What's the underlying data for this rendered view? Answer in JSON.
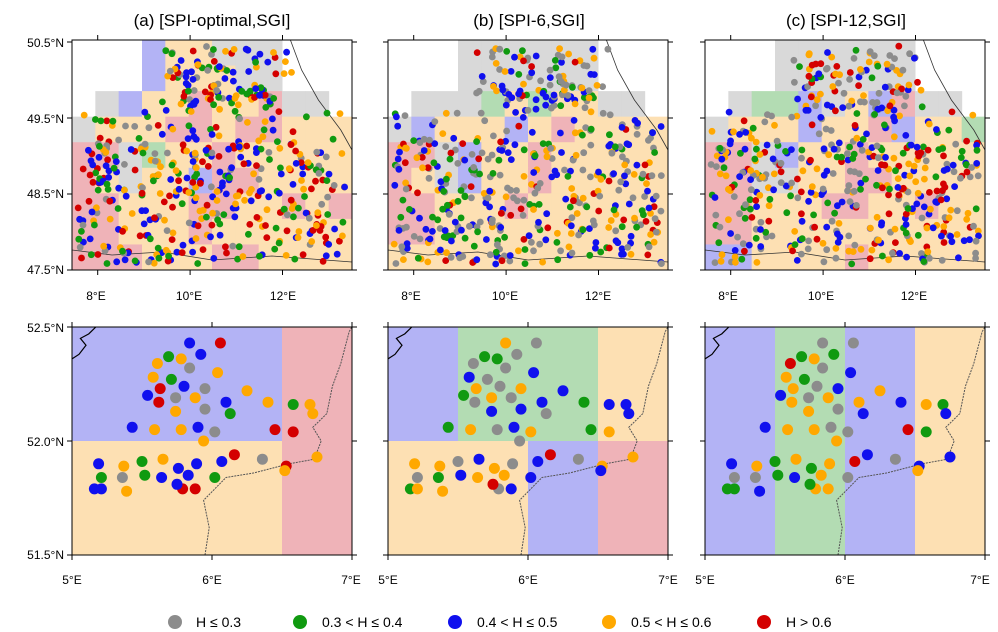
{
  "panel_titles": [
    "(a) [SPI-optimal,SGI]",
    "(b) [SPI-6,SGI]",
    "(c) [SPI-12,SGI]"
  ],
  "top_row": {
    "y_ticks": [
      "50.5°N",
      "49.5°N",
      "48.5°N",
      "47.5°N"
    ],
    "x_ticks": [
      "8°E",
      "10°E",
      "12°E"
    ]
  },
  "bottom_row": {
    "y_ticks": [
      "52.5°N",
      "52.0°N",
      "51.5°N"
    ],
    "x_ticks": [
      "5°E",
      "6°E",
      "7°E"
    ]
  },
  "legend": [
    {
      "label": "H ≤ 0.3",
      "color": "#8c8c8c"
    },
    {
      "label": "0.3 < H ≤ 0.4",
      "color": "#109a10"
    },
    {
      "label": "0.4 < H ≤ 0.5",
      "color": "#1010ee"
    },
    {
      "label": "0.5 < H ≤ 0.6",
      "color": "#ffa800"
    },
    {
      "label": "H > 0.6",
      "color": "#d40000"
    }
  ],
  "chart_data": {
    "type": "map",
    "category_colors": {
      "le03": "#8c8c8c",
      "b03_04": "#109a10",
      "b04_05": "#1010ee",
      "b05_06": "#ffa800",
      "gt06": "#d40000"
    },
    "grid_fill_colors": {
      "le03": "#d9d9d9",
      "b03_04": "#b3dcb3",
      "b04_05": "#b3b3f5",
      "b05_06": "#fde0b3",
      "gt06": "#efb3b8"
    },
    "bottom_grid": {
      "cells_lon_edges": [
        5.0,
        5.5,
        6.0,
        6.5,
        7.0
      ],
      "cells_lat_edges": [
        51.5,
        52.0,
        52.5
      ],
      "panels": [
        {
          "upper": [
            "b04_05",
            "b04_05",
            "b04_05",
            "gt06"
          ],
          "lower": [
            "b05_06",
            "b05_06",
            "b05_06",
            "gt06"
          ]
        },
        {
          "upper": [
            "b04_05",
            "b03_04",
            "b03_04",
            "b05_06"
          ],
          "lower": [
            "b05_06",
            "b05_06",
            "b04_05",
            "gt06"
          ]
        },
        {
          "upper": [
            "b04_05",
            "b03_04",
            "b04_05",
            "b05_06"
          ],
          "lower": [
            "b04_05",
            "b03_04",
            "b04_05",
            "b05_06"
          ]
        }
      ]
    },
    "bottom_stations": [
      {
        "lon": 5.84,
        "lat": 52.43,
        "c": [
          "b04_05",
          "b05_06",
          "le03"
        ]
      },
      {
        "lon": 6.06,
        "lat": 52.43,
        "c": [
          "gt06",
          "le03",
          "le03"
        ]
      },
      {
        "lon": 5.69,
        "lat": 52.37,
        "c": [
          "b03_04",
          "b03_04",
          "b03_04"
        ]
      },
      {
        "lon": 5.92,
        "lat": 52.38,
        "c": [
          "b04_05",
          "le03",
          "b03_04"
        ]
      },
      {
        "lon": 5.61,
        "lat": 52.34,
        "c": [
          "b05_06",
          "le03",
          "gt06"
        ]
      },
      {
        "lon": 5.78,
        "lat": 52.36,
        "c": [
          "b05_06",
          "b03_04",
          "b05_06"
        ]
      },
      {
        "lon": 5.84,
        "lat": 52.32,
        "c": [
          "le03",
          "le03",
          "le03"
        ]
      },
      {
        "lon": 5.58,
        "lat": 52.28,
        "c": [
          "b05_06",
          "b04_05",
          "b05_06"
        ]
      },
      {
        "lon": 5.71,
        "lat": 52.27,
        "c": [
          "b03_04",
          "le03",
          "b03_04"
        ]
      },
      {
        "lon": 6.04,
        "lat": 52.3,
        "c": [
          "b05_06",
          "b04_05",
          "b04_05"
        ]
      },
      {
        "lon": 5.63,
        "lat": 52.23,
        "c": [
          "gt06",
          "b05_06",
          "b05_06"
        ]
      },
      {
        "lon": 5.8,
        "lat": 52.24,
        "c": [
          "b04_05",
          "le03",
          "le03"
        ]
      },
      {
        "lon": 5.95,
        "lat": 52.23,
        "c": [
          "le03",
          "b05_06",
          "b04_05"
        ]
      },
      {
        "lon": 6.25,
        "lat": 52.22,
        "c": [
          "b05_06",
          "b04_05",
          "b05_06"
        ]
      },
      {
        "lon": 5.54,
        "lat": 52.2,
        "c": [
          "b04_05",
          "b03_04",
          "b04_05"
        ]
      },
      {
        "lon": 5.74,
        "lat": 52.19,
        "c": [
          "le03",
          "b05_06",
          "le03"
        ]
      },
      {
        "lon": 5.88,
        "lat": 52.19,
        "c": [
          "b05_06",
          "le03",
          "b05_06"
        ]
      },
      {
        "lon": 5.62,
        "lat": 52.17,
        "c": [
          "gt06",
          "le03",
          "b05_06"
        ]
      },
      {
        "lon": 6.1,
        "lat": 52.17,
        "c": [
          "b04_05",
          "b04_05",
          "b05_06"
        ]
      },
      {
        "lon": 6.4,
        "lat": 52.17,
        "c": [
          "b05_06",
          "b03_04",
          "b04_05"
        ]
      },
      {
        "lon": 6.58,
        "lat": 52.16,
        "c": [
          "b03_04",
          "b04_05",
          "b05_06"
        ]
      },
      {
        "lon": 6.7,
        "lat": 52.16,
        "c": [
          "b05_06",
          "b04_05",
          "b03_04"
        ]
      },
      {
        "lon": 5.74,
        "lat": 52.13,
        "c": [
          "b05_06",
          "b04_05",
          "b05_06"
        ]
      },
      {
        "lon": 5.95,
        "lat": 52.14,
        "c": [
          "le03",
          "b04_05",
          "le03"
        ]
      },
      {
        "lon": 6.13,
        "lat": 52.12,
        "c": [
          "b03_04",
          "le03",
          "b04_05"
        ]
      },
      {
        "lon": 6.72,
        "lat": 52.12,
        "c": [
          "b05_06",
          "b04_05",
          "b04_05"
        ]
      },
      {
        "lon": 5.43,
        "lat": 52.06,
        "c": [
          "b04_05",
          "b03_04",
          "b04_05"
        ]
      },
      {
        "lon": 5.59,
        "lat": 52.05,
        "c": [
          "b05_06",
          "b05_06",
          "b05_06"
        ]
      },
      {
        "lon": 5.78,
        "lat": 52.05,
        "c": [
          "b05_06",
          "le03",
          "b05_06"
        ]
      },
      {
        "lon": 5.9,
        "lat": 52.06,
        "c": [
          "b04_05",
          "b04_05",
          "le03"
        ]
      },
      {
        "lon": 6.02,
        "lat": 52.04,
        "c": [
          "le03",
          "b05_06",
          "le03"
        ]
      },
      {
        "lon": 6.45,
        "lat": 52.05,
        "c": [
          "gt06",
          "b03_04",
          "gt06"
        ]
      },
      {
        "lon": 6.58,
        "lat": 52.04,
        "c": [
          "gt06",
          "b05_06",
          "b03_04"
        ]
      },
      {
        "lon": 5.94,
        "lat": 52.0,
        "c": [
          "b05_06",
          "le03",
          "b05_06"
        ]
      },
      {
        "lon": 6.16,
        "lat": 51.94,
        "c": [
          "gt06",
          "gt06",
          "b04_05"
        ]
      },
      {
        "lon": 6.36,
        "lat": 51.92,
        "c": [
          "le03",
          "le03",
          "le03"
        ]
      },
      {
        "lon": 6.07,
        "lat": 51.91,
        "c": [
          "b04_05",
          "b04_05",
          "gt06"
        ]
      },
      {
        "lon": 6.53,
        "lat": 51.89,
        "c": [
          "gt06",
          "b05_06",
          "b04_05"
        ]
      },
      {
        "lon": 6.75,
        "lat": 51.93,
        "c": [
          "b05_06",
          "b05_06",
          "b04_05"
        ]
      },
      {
        "lon": 5.19,
        "lat": 51.9,
        "c": [
          "b04_05",
          "b05_06",
          "b04_05"
        ]
      },
      {
        "lon": 5.37,
        "lat": 51.89,
        "c": [
          "b05_06",
          "b05_06",
          "b05_06"
        ]
      },
      {
        "lon": 5.5,
        "lat": 51.91,
        "c": [
          "b03_04",
          "le03",
          "b03_04"
        ]
      },
      {
        "lon": 5.65,
        "lat": 51.92,
        "c": [
          "b05_06",
          "b04_05",
          "b05_06"
        ]
      },
      {
        "lon": 5.76,
        "lat": 51.88,
        "c": [
          "b04_05",
          "b05_06",
          "b03_04"
        ]
      },
      {
        "lon": 5.89,
        "lat": 51.9,
        "c": [
          "b04_05",
          "le03",
          "b05_06"
        ]
      },
      {
        "lon": 6.52,
        "lat": 51.87,
        "c": [
          "b05_06",
          "b04_05",
          "b05_06"
        ]
      },
      {
        "lon": 5.21,
        "lat": 51.84,
        "c": [
          "b03_04",
          "le03",
          "le03"
        ]
      },
      {
        "lon": 5.36,
        "lat": 51.84,
        "c": [
          "le03",
          "b03_04",
          "le03"
        ]
      },
      {
        "lon": 5.52,
        "lat": 51.85,
        "c": [
          "b03_04",
          "b04_05",
          "b03_04"
        ]
      },
      {
        "lon": 5.64,
        "lat": 51.84,
        "c": [
          "b04_05",
          "b05_06",
          "b04_05"
        ]
      },
      {
        "lon": 5.83,
        "lat": 51.85,
        "c": [
          "b04_05",
          "b05_06",
          "b05_06"
        ]
      },
      {
        "lon": 6.02,
        "lat": 51.84,
        "c": [
          "b03_04",
          "b04_05",
          "le03"
        ]
      },
      {
        "lon": 5.16,
        "lat": 51.79,
        "c": [
          "b04_05",
          "b03_04",
          "b03_04"
        ]
      },
      {
        "lon": 5.21,
        "lat": 51.79,
        "c": [
          "b04_05",
          "b05_06",
          "b03_04"
        ]
      },
      {
        "lon": 5.39,
        "lat": 51.78,
        "c": [
          "b05_06",
          "b05_06",
          "b04_05"
        ]
      },
      {
        "lon": 5.79,
        "lat": 51.79,
        "c": [
          "gt06",
          "le03",
          "b05_06"
        ]
      },
      {
        "lon": 5.88,
        "lat": 51.79,
        "c": [
          "gt06",
          "b04_05",
          "b05_06"
        ]
      },
      {
        "lon": 5.75,
        "lat": 51.81,
        "c": [
          "b04_05",
          "gt06",
          "b03_04"
        ]
      }
    ]
  }
}
